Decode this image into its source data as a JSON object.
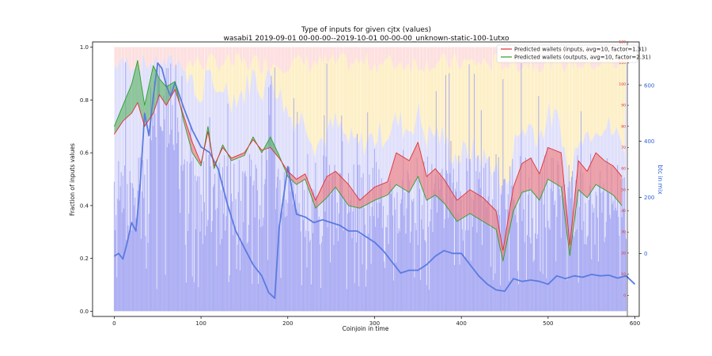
{
  "chart_data": {
    "type": "area",
    "title": "Type of inputs for given cjtx (values)",
    "subtitle": "wasabi1 2019-09-01 00-00-00--2019-10-01 00-00-00_unknown-static-100-1utxo",
    "xlabel": "Coinjoin in time",
    "ylabel": "Fraction of inputs values",
    "y2label": "btc in mix",
    "xlim": [
      -25,
      605
    ],
    "ylim": [
      -0.02,
      1.02
    ],
    "y2lim": [
      -225,
      755
    ],
    "y3lim": [
      -10,
      120
    ],
    "x_ticks": [
      0,
      100,
      200,
      300,
      400,
      500,
      600
    ],
    "y_ticks": [
      0.0,
      0.2,
      0.4,
      0.6,
      0.8,
      1.0
    ],
    "y2_ticks": [
      0,
      200,
      400,
      600
    ],
    "y3_ticks": [
      0,
      10,
      20,
      30,
      40,
      50,
      60,
      70,
      80,
      90,
      100,
      110,
      120
    ],
    "legend": {
      "placement": "top-right",
      "entries": [
        {
          "label": "Predicted wallets (inputs, avg=10, factor=1.31)",
          "color": "#e03030"
        },
        {
          "label": "Predicted wallets (outputs, avg=10, factor=2.31)",
          "color": "#2ca02c"
        }
      ]
    },
    "colors": {
      "inputs_line": "#e03030",
      "outputs_line": "#2ca02c",
      "red_fill": "#f08080",
      "green_fill": "#4caf50",
      "btc_line": "#5b7be0",
      "bars": "#9a9cf0",
      "pink_band": "#fde0e0",
      "yellow_band": "#fdf0c8",
      "lavender_band": "#e0e0fb"
    },
    "series": [
      {
        "name": "Predicted wallets (inputs, avg=10, factor=1.31)",
        "axis": "y",
        "x": [
          0,
          10,
          20,
          27,
          35,
          45,
          52,
          60,
          70,
          80,
          90,
          100,
          108,
          115,
          125,
          135,
          150,
          160,
          170,
          180,
          190,
          200,
          210,
          220,
          232,
          245,
          255,
          270,
          283,
          300,
          315,
          325,
          340,
          350,
          360,
          370,
          380,
          395,
          410,
          425,
          440,
          448,
          460,
          470,
          480,
          490,
          500,
          515,
          525,
          535,
          545,
          555,
          565,
          575,
          585
        ],
        "values": [
          0.67,
          0.72,
          0.75,
          0.79,
          0.7,
          0.75,
          0.82,
          0.78,
          0.84,
          0.74,
          0.64,
          0.56,
          0.68,
          0.55,
          0.62,
          0.58,
          0.6,
          0.65,
          0.61,
          0.62,
          0.58,
          0.53,
          0.5,
          0.52,
          0.42,
          0.51,
          0.53,
          0.48,
          0.42,
          0.47,
          0.49,
          0.6,
          0.57,
          0.64,
          0.51,
          0.54,
          0.5,
          0.42,
          0.46,
          0.43,
          0.38,
          0.23,
          0.47,
          0.56,
          0.58,
          0.52,
          0.62,
          0.6,
          0.25,
          0.57,
          0.53,
          0.6,
          0.57,
          0.55,
          0.51
        ]
      },
      {
        "name": "Predicted wallets (outputs, avg=10, factor=2.31)",
        "axis": "y",
        "x": [
          0,
          10,
          20,
          27,
          35,
          45,
          52,
          60,
          70,
          80,
          90,
          100,
          108,
          115,
          125,
          135,
          150,
          160,
          170,
          180,
          190,
          200,
          210,
          220,
          232,
          245,
          255,
          270,
          283,
          300,
          315,
          325,
          340,
          350,
          360,
          370,
          380,
          395,
          410,
          425,
          440,
          448,
          460,
          470,
          480,
          490,
          500,
          515,
          525,
          535,
          545,
          555,
          565,
          575,
          585
        ],
        "values": [
          0.7,
          0.78,
          0.86,
          0.95,
          0.78,
          0.93,
          0.88,
          0.85,
          0.87,
          0.72,
          0.6,
          0.55,
          0.7,
          0.54,
          0.63,
          0.57,
          0.59,
          0.66,
          0.6,
          0.66,
          0.59,
          0.51,
          0.48,
          0.5,
          0.39,
          0.43,
          0.47,
          0.4,
          0.39,
          0.42,
          0.44,
          0.48,
          0.45,
          0.51,
          0.42,
          0.44,
          0.41,
          0.34,
          0.37,
          0.34,
          0.31,
          0.19,
          0.38,
          0.45,
          0.46,
          0.42,
          0.5,
          0.47,
          0.21,
          0.46,
          0.43,
          0.48,
          0.46,
          0.44,
          0.4
        ]
      },
      {
        "name": "btc in mix",
        "axis": "y2",
        "x": [
          0,
          5,
          10,
          15,
          20,
          25,
          30,
          35,
          40,
          45,
          50,
          55,
          60,
          65,
          70,
          80,
          90,
          100,
          110,
          120,
          130,
          140,
          150,
          160,
          170,
          178,
          185,
          190,
          200,
          210,
          220,
          230,
          240,
          250,
          260,
          270,
          280,
          290,
          300,
          310,
          320,
          330,
          340,
          350,
          360,
          370,
          380,
          390,
          400,
          410,
          420,
          430,
          440,
          450,
          460,
          470,
          480,
          490,
          500,
          510,
          520,
          530,
          540,
          550,
          560,
          570,
          580,
          590,
          600
        ],
        "values": [
          -10,
          0,
          -20,
          40,
          110,
          80,
          250,
          500,
          420,
          560,
          680,
          660,
          600,
          560,
          610,
          520,
          440,
          380,
          360,
          300,
          180,
          80,
          20,
          -40,
          -80,
          -140,
          -160,
          90,
          310,
          140,
          130,
          110,
          120,
          110,
          100,
          80,
          80,
          60,
          40,
          10,
          -30,
          -70,
          -60,
          -60,
          -40,
          -10,
          10,
          0,
          0,
          -40,
          -80,
          -110,
          -130,
          -135,
          -90,
          -100,
          -95,
          -100,
          -110,
          -80,
          -90,
          -80,
          -85,
          -75,
          -80,
          -78,
          -88,
          -80,
          -110
        ]
      }
    ]
  }
}
